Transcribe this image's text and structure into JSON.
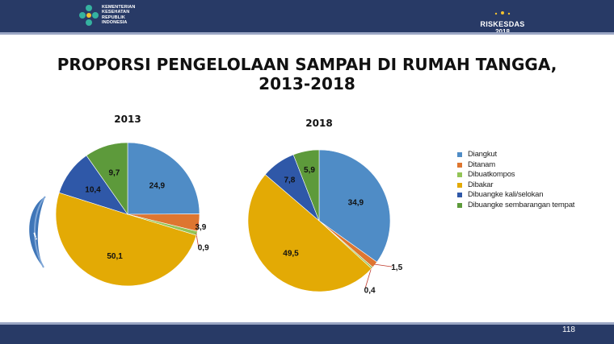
{
  "header": {
    "logo_left_lines": [
      "KEMENTERIAN",
      "KESEHATAN",
      "REPUBLIK",
      "INDONESIA"
    ],
    "logo_right_lines": [
      "RISKESDAS",
      "2018"
    ]
  },
  "title_line1": "PROPORSI PENGELOLAAN SAMPAH DI RUMAH TANGGA,",
  "title_line2": "2013-2018",
  "page_number": "118",
  "colors": {
    "Diangkut": "#4f8cc6",
    "Ditanam": "#de7630",
    "Dibuat kompos": "#93c457",
    "Dibakar": "#e3aa05",
    "Dibuang ke kali/selokan": "#2f58a8",
    "Dibuang ke sembarangan tempat": "#5d9a3b"
  },
  "chart_data": [
    {
      "type": "pie",
      "title": "2013",
      "categories": [
        "Diangkut",
        "Ditanam",
        "Dibuat kompos",
        "Dibakar",
        "Dibuang ke kali/selokan",
        "Dibuang ke sembarangan tempat"
      ],
      "values": [
        24.9,
        3.9,
        0.9,
        50.1,
        10.4,
        9.7
      ],
      "labels": [
        "24,9",
        "3,9",
        "0,9",
        "50,1",
        "10,4",
        "9,7"
      ]
    },
    {
      "type": "pie",
      "title": "2018",
      "categories": [
        "Diangkut",
        "Ditanam",
        "Dibuat kompos",
        "Dibakar",
        "Dibuang ke kali/selokan",
        "Dibuang ke sembarangan tempat"
      ],
      "values": [
        34.9,
        1.5,
        0.4,
        49.5,
        7.8,
        5.9
      ],
      "labels": [
        "34,9",
        "1,5",
        "0,4",
        "49,5",
        "7,8",
        "5,9"
      ]
    }
  ],
  "legend": [
    {
      "label": "Diangkut",
      "key": "Diangkut"
    },
    {
      "label": "Ditanam",
      "key": "Ditanam"
    },
    {
      "label": "Dibuatkompos",
      "key": "Dibuat kompos"
    },
    {
      "label": "Dibakar",
      "key": "Dibakar"
    },
    {
      "label": "Dibuangke kali/selokan",
      "key": "Dibuang ke kali/selokan"
    },
    {
      "label": "Dibuangke sembarangan tempat",
      "key": "Dibuang ke sembarangan tempat"
    }
  ]
}
